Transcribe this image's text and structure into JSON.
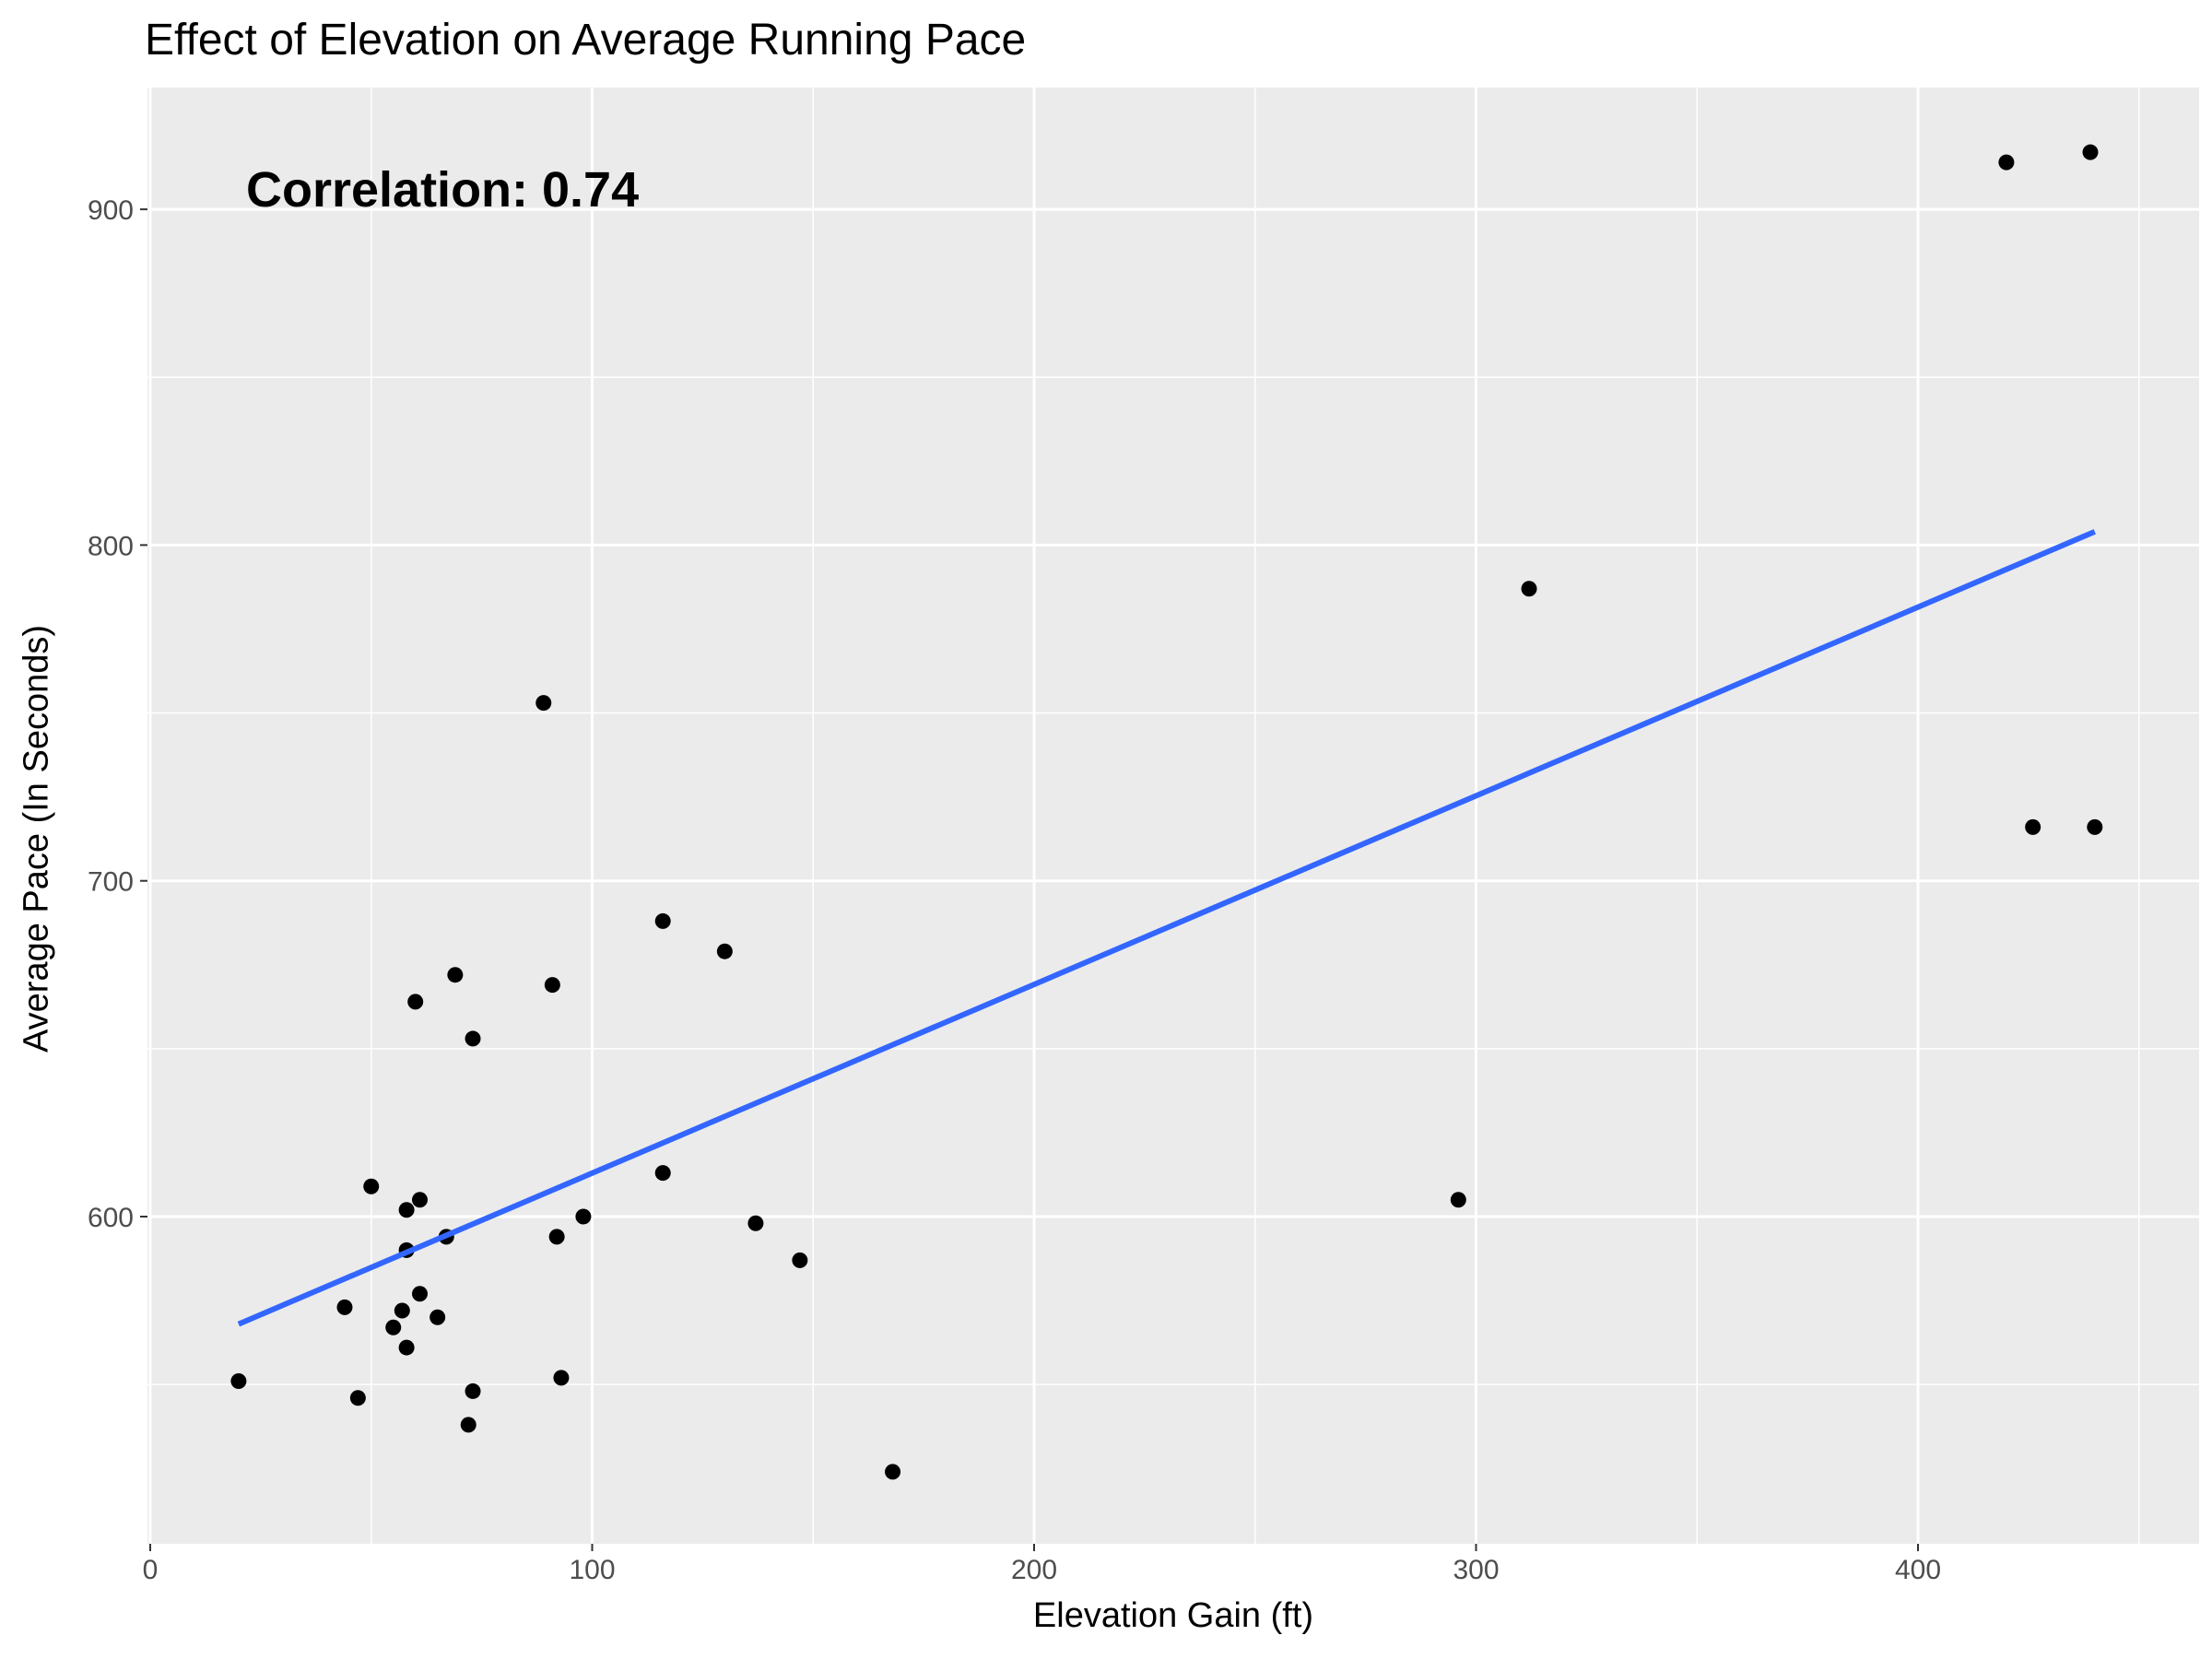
{
  "chart_data": {
    "type": "scatter",
    "title": "Effect of Elevation on Average Running Pace",
    "xlabel": "Elevation Gain (ft)",
    "ylabel": "Average Pace (In Seconds)",
    "annotation": "Correlation: 0.74",
    "xlim": [
      0,
      460
    ],
    "ylim": [
      505,
      935
    ],
    "x_ticks": [
      0,
      100,
      200,
      300,
      400
    ],
    "x_tick_labels": [
      "0",
      "100",
      "200",
      "300",
      "400"
    ],
    "y_ticks": [
      600,
      700,
      800,
      900
    ],
    "y_tick_labels": [
      "600",
      "700",
      "800",
      "900"
    ],
    "grid": true,
    "points": [
      {
        "x": 20,
        "y": 551
      },
      {
        "x": 44,
        "y": 573
      },
      {
        "x": 47,
        "y": 546
      },
      {
        "x": 50,
        "y": 609
      },
      {
        "x": 55,
        "y": 567
      },
      {
        "x": 57,
        "y": 572
      },
      {
        "x": 58,
        "y": 561
      },
      {
        "x": 58,
        "y": 590
      },
      {
        "x": 58,
        "y": 602
      },
      {
        "x": 60,
        "y": 664
      },
      {
        "x": 61,
        "y": 577
      },
      {
        "x": 61,
        "y": 605
      },
      {
        "x": 65,
        "y": 570
      },
      {
        "x": 67,
        "y": 594
      },
      {
        "x": 69,
        "y": 672
      },
      {
        "x": 72,
        "y": 538
      },
      {
        "x": 73,
        "y": 548
      },
      {
        "x": 73,
        "y": 653
      },
      {
        "x": 89,
        "y": 753
      },
      {
        "x": 91,
        "y": 669
      },
      {
        "x": 92,
        "y": 594
      },
      {
        "x": 93,
        "y": 552
      },
      {
        "x": 98,
        "y": 600
      },
      {
        "x": 116,
        "y": 613
      },
      {
        "x": 116,
        "y": 688
      },
      {
        "x": 130,
        "y": 679
      },
      {
        "x": 137,
        "y": 598
      },
      {
        "x": 147,
        "y": 587
      },
      {
        "x": 168,
        "y": 524
      },
      {
        "x": 296,
        "y": 605
      },
      {
        "x": 312,
        "y": 787
      },
      {
        "x": 420,
        "y": 914
      },
      {
        "x": 426,
        "y": 716
      },
      {
        "x": 439,
        "y": 917
      },
      {
        "x": 440,
        "y": 716
      }
    ],
    "trend_line": {
      "x": [
        20,
        440
      ],
      "y": [
        568,
        804
      ],
      "color": "#3366ff"
    },
    "colors": {
      "panel_background": "#ebebeb",
      "grid": "#ffffff",
      "point": "#000000",
      "tick_text": "#4d4d4d",
      "axis_tick": "#333333"
    }
  }
}
